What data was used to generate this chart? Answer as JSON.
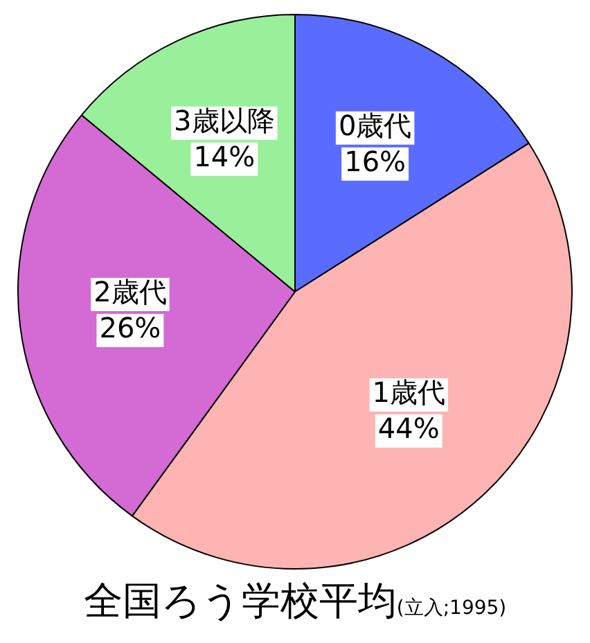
{
  "chart_data": {
    "type": "pie",
    "title": "全国ろう学校平均",
    "subtitle": "(立入;1995)",
    "categories": [
      "0歳代",
      "1歳代",
      "2歳代",
      "3歳以降"
    ],
    "values": [
      16,
      44,
      26,
      14
    ],
    "value_labels": [
      "16%",
      "44%",
      "26%",
      "14%"
    ],
    "colors": [
      "#5a6cff",
      "#ffb4b4",
      "#d46ad4",
      "#9af09a"
    ],
    "legend": false
  }
}
